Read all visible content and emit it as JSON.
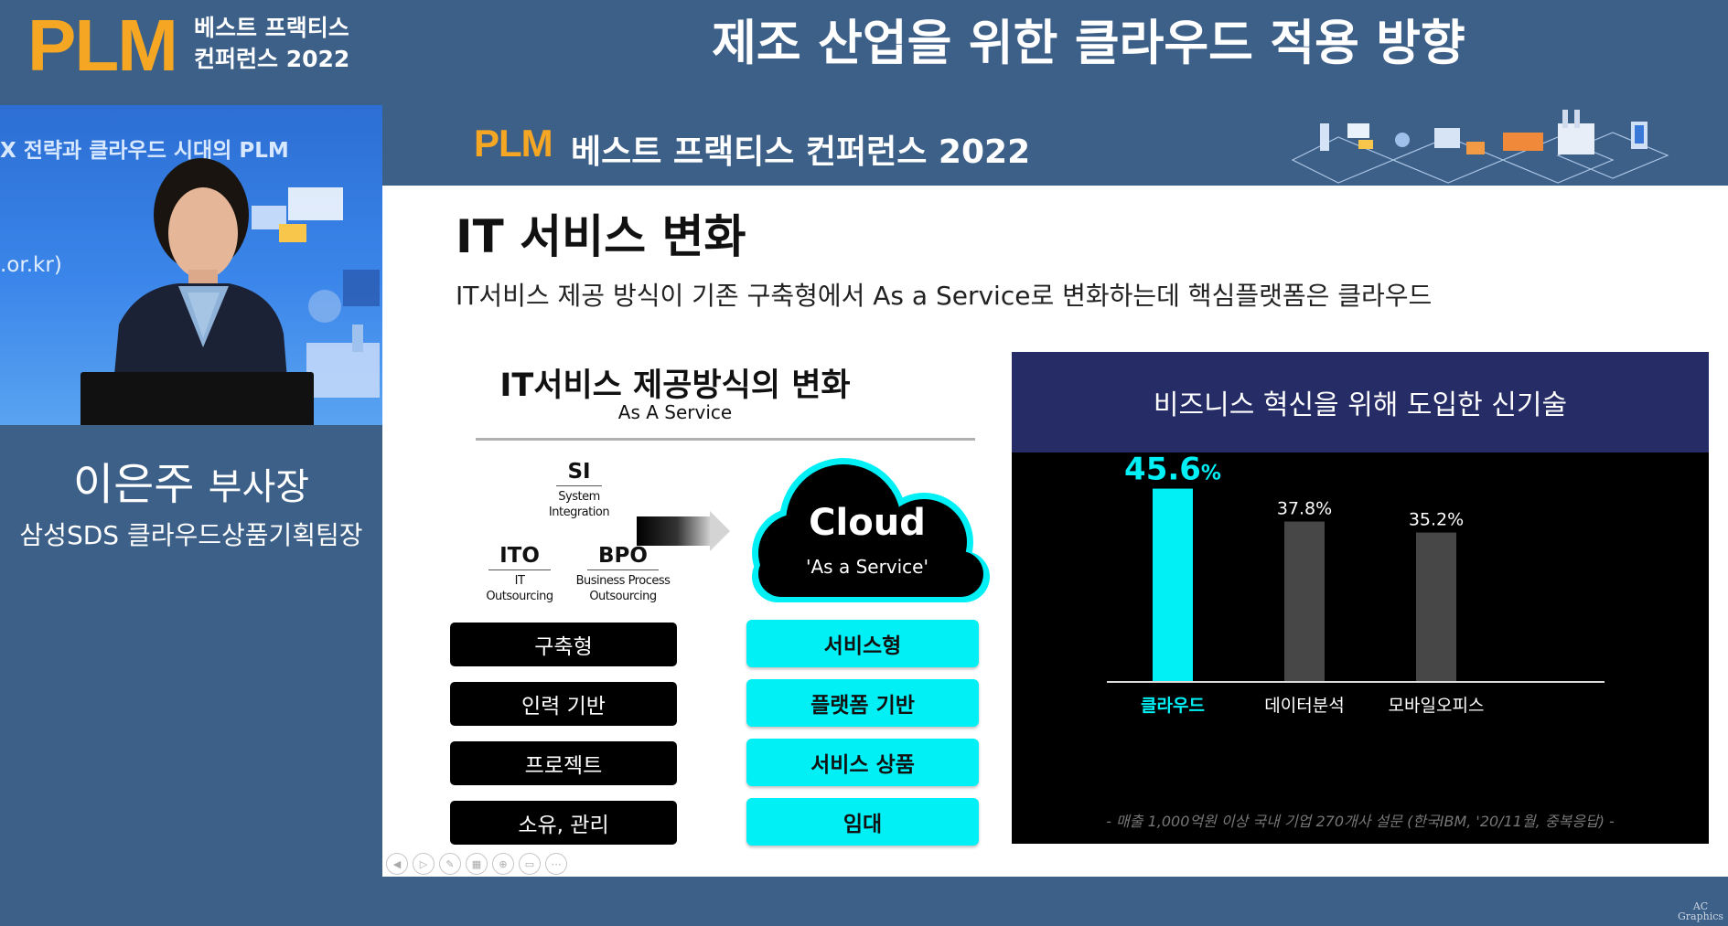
{
  "header": {
    "logo": "PLM",
    "logo_line1": "베스트 프랙티스",
    "logo_line2": "컨퍼런스 2022",
    "title": "제조 산업을 위한 클라우드 적용 방향"
  },
  "speaker": {
    "name": "이은주",
    "role": "부사장",
    "org": "삼성SDS 클라우드상품기획팀장",
    "video_bg_text1": "X 전략과 클라우드 시대의 PLM",
    "video_bg_text2": ".or.kr)"
  },
  "slide": {
    "banner_logo": "PLM",
    "banner_title": "베스트 프랙티스 컨퍼런스 2022",
    "heading": "IT 서비스 변화",
    "description": "IT서비스 제공 방식이 기존 구축형에서 As a Service로 변화하는데 핵심플랫폼은 클라우드",
    "diagram": {
      "title": "IT서비스 제공방식의 변화",
      "subtitle": "As A Service",
      "si": {
        "abbr": "SI",
        "line1": "System",
        "line2": "Integration"
      },
      "ito": {
        "abbr": "ITO",
        "line1": "IT",
        "line2": "Outsourcing"
      },
      "bpo": {
        "abbr": "BPO",
        "line1": "Business Process",
        "line2": "Outsourcing"
      },
      "cloud_title": "Cloud",
      "cloud_sub": "'As a Service'",
      "old_items": [
        "구축형",
        "인력 기반",
        "프로젝트",
        "소유, 관리"
      ],
      "new_items": [
        "서비스형",
        "플랫폼 기반",
        "서비스 상품",
        "임대"
      ]
    },
    "chart_title": "비즈니스 혁신을 위해 도입한 신기술",
    "chart_source": "- 매출 1,000억원 이상 국내 기업 270개사 설문 (한국IBM, '20/11월, 중복응답) -",
    "toolbar_icons": [
      "back-icon",
      "play-icon",
      "pen-icon",
      "slides-icon",
      "zoom-icon",
      "subtitle-icon",
      "more-icon"
    ]
  },
  "chart_data": {
    "type": "bar",
    "title": "비즈니스 혁신을 위해 도입한 신기술",
    "categories": [
      "클라우드",
      "데이터분석",
      "모바일오피스"
    ],
    "values": [
      45.6,
      37.8,
      35.2
    ],
    "value_labels": [
      "45.6",
      "37.8%",
      "35.2%"
    ],
    "highlight_unit": "%",
    "colors": [
      "#00f0f5",
      "#474747",
      "#474747"
    ],
    "label_colors": [
      "#00f0f5",
      "#ffffff",
      "#ffffff"
    ],
    "ylim": [
      0,
      50
    ],
    "grid": false,
    "xlabel": "",
    "ylabel": ""
  },
  "watermark": {
    "line1": "AC",
    "line2": "Graphics"
  }
}
